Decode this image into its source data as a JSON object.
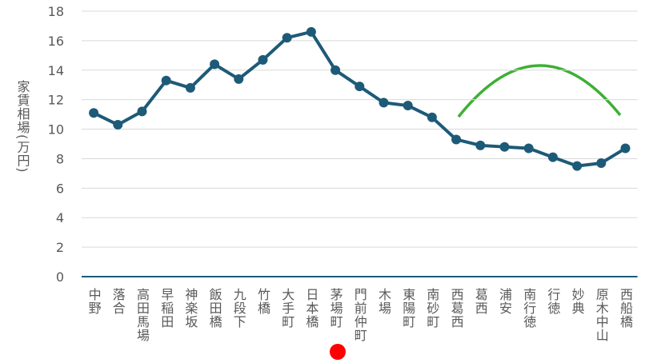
{
  "chart_data": {
    "type": "line",
    "y_label": "家賃相場(万円)",
    "categories": [
      "中野",
      "落合",
      "高田馬場",
      "早稲田",
      "神楽坂",
      "飯田橋",
      "九段下",
      "竹橋",
      "大手町",
      "日本橋",
      "茅場町",
      "門前仲町",
      "木場",
      "東陽町",
      "南砂町",
      "西葛西",
      "葛西",
      "浦安",
      "南行徳",
      "行徳",
      "妙典",
      "原木中山",
      "西船橋"
    ],
    "series": [
      {
        "color": "#1d5a78",
        "values": [
          11.1,
          10.3,
          11.2,
          13.3,
          12.8,
          14.4,
          13.4,
          14.7,
          16.2,
          16.6,
          14.0,
          12.9,
          11.8,
          11.6,
          10.8,
          9.3,
          8.9,
          8.8,
          8.7,
          8.1,
          7.5,
          7.7,
          8.7
        ]
      }
    ],
    "ylim": [
      0,
      18
    ],
    "yticks": [
      0,
      2,
      4,
      6,
      8,
      10,
      12,
      14,
      16,
      18
    ],
    "grid": true
  }
}
